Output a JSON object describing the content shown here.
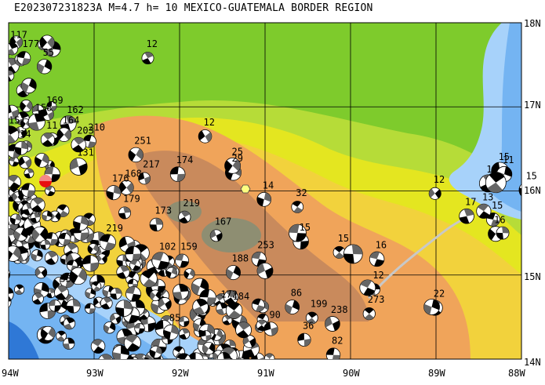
{
  "title": "E202307231823A M=4.7 h= 10 MEXICO-GUATEMALA BORDER REGION",
  "lat_labels": [
    "18N",
    "17N",
    "16N",
    "15N",
    "14N"
  ],
  "lon_labels": [
    "94W",
    "93W",
    "92W",
    "91W",
    "90W",
    "89W",
    "88W"
  ],
  "colors": {
    "ocean_deep": "#2f78d6",
    "ocean": "#74b4f2",
    "shelf": "#a7d2fa",
    "lowland": "#7ecb2c",
    "plain": "#b6dc38",
    "hills": "#e4e620",
    "upland": "#f2d23c",
    "mountain": "#f0a45a",
    "highland": "#c98a5c",
    "peak": "#8e8e72",
    "event": "#e81010"
  },
  "event_marker": "red-focal-mechanism",
  "labels": [
    {
      "text": "117",
      "lon": -93.98,
      "lat": 17.82
    },
    {
      "text": "177",
      "lon": -93.84,
      "lat": 17.71
    },
    {
      "text": "55",
      "lon": -93.6,
      "lat": 17.61
    },
    {
      "text": "12",
      "lon": -92.39,
      "lat": 17.71
    },
    {
      "text": "169",
      "lon": -93.56,
      "lat": 17.04
    },
    {
      "text": "158",
      "lon": -93.69,
      "lat": 16.95
    },
    {
      "text": "162",
      "lon": -93.32,
      "lat": 16.93
    },
    {
      "text": "151",
      "lon": -94.0,
      "lat": 16.8
    },
    {
      "text": "164",
      "lon": -93.37,
      "lat": 16.8
    },
    {
      "text": "11",
      "lon": -93.56,
      "lat": 16.74
    },
    {
      "text": "210",
      "lon": -93.07,
      "lat": 16.72
    },
    {
      "text": "203",
      "lon": -93.2,
      "lat": 16.68
    },
    {
      "text": "14",
      "lon": -93.87,
      "lat": 16.64
    },
    {
      "text": "12",
      "lon": -91.72,
      "lat": 16.78
    },
    {
      "text": "251",
      "lon": -92.53,
      "lat": 16.56
    },
    {
      "text": "131",
      "lon": -93.2,
      "lat": 16.42
    },
    {
      "text": "25",
      "lon": -91.39,
      "lat": 16.43
    },
    {
      "text": "29",
      "lon": -91.39,
      "lat": 16.35
    },
    {
      "text": "174",
      "lon": -92.04,
      "lat": 16.33
    },
    {
      "text": "217",
      "lon": -92.43,
      "lat": 16.28
    },
    {
      "text": "168",
      "lon": -92.64,
      "lat": 16.17
    },
    {
      "text": "176",
      "lon": -92.79,
      "lat": 16.11
    },
    {
      "text": "14",
      "lon": -91.03,
      "lat": 16.03
    },
    {
      "text": "12",
      "lon": -89.03,
      "lat": 16.1
    },
    {
      "text": "32",
      "lon": -90.64,
      "lat": 15.94
    },
    {
      "text": "15",
      "lon": -88.27,
      "lat": 16.37
    },
    {
      "text": "15",
      "lon": -88.41,
      "lat": 16.22
    },
    {
      "text": "11",
      "lon": -88.22,
      "lat": 16.33
    },
    {
      "text": "15",
      "lon": -87.95,
      "lat": 16.14
    },
    {
      "text": "15",
      "lon": -88.35,
      "lat": 15.79
    },
    {
      "text": "17",
      "lon": -88.66,
      "lat": 15.83
    },
    {
      "text": "13",
      "lon": -88.46,
      "lat": 15.89
    },
    {
      "text": "16",
      "lon": -88.32,
      "lat": 15.62
    },
    {
      "text": "219",
      "lon": -91.96,
      "lat": 15.82
    },
    {
      "text": "173",
      "lon": -92.29,
      "lat": 15.73
    },
    {
      "text": "167",
      "lon": -91.59,
      "lat": 15.6
    },
    {
      "text": "15",
      "lon": -90.6,
      "lat": 15.53
    },
    {
      "text": "253",
      "lon": -91.09,
      "lat": 15.32
    },
    {
      "text": "15",
      "lon": -90.15,
      "lat": 15.4
    },
    {
      "text": "16",
      "lon": -89.71,
      "lat": 15.32
    },
    {
      "text": "188",
      "lon": -91.39,
      "lat": 15.16
    },
    {
      "text": "12",
      "lon": -89.74,
      "lat": 14.96
    },
    {
      "text": "199",
      "lon": -90.47,
      "lat": 14.62
    },
    {
      "text": "238",
      "lon": -90.23,
      "lat": 14.55
    },
    {
      "text": "273",
      "lon": -89.8,
      "lat": 14.67
    },
    {
      "text": "22",
      "lon": -89.03,
      "lat": 14.74
    },
    {
      "text": "172",
      "lon": -91.52,
      "lat": 14.73
    },
    {
      "text": "184",
      "lon": -91.38,
      "lat": 14.71
    },
    {
      "text": "86",
      "lon": -90.7,
      "lat": 14.75
    },
    {
      "text": "90",
      "lon": -90.95,
      "lat": 14.49
    },
    {
      "text": "159",
      "lon": -91.99,
      "lat": 15.3
    },
    {
      "text": "102",
      "lon": -92.24,
      "lat": 15.3
    },
    {
      "text": "219",
      "lon": -92.86,
      "lat": 15.52
    },
    {
      "text": "179",
      "lon": -92.66,
      "lat": 15.87
    },
    {
      "text": "33",
      "lon": -93.4,
      "lat": 14.92
    },
    {
      "text": "85",
      "lon": -92.12,
      "lat": 14.45
    },
    {
      "text": "82",
      "lon": -90.22,
      "lat": 14.18
    },
    {
      "text": "36",
      "lon": -90.56,
      "lat": 14.36
    }
  ]
}
